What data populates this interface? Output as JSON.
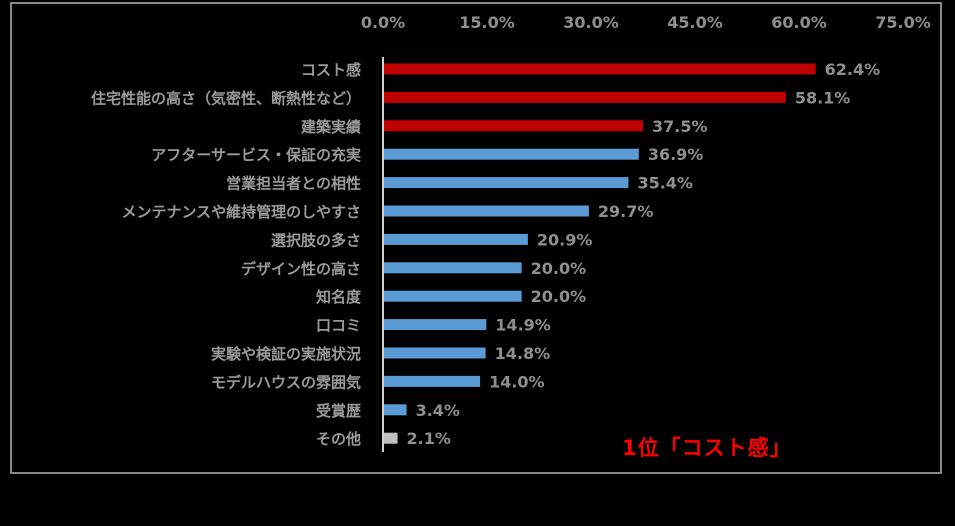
{
  "chart_data": {
    "type": "bar",
    "orientation": "horizontal",
    "categories": [
      "コスト感",
      "住宅性能の高さ（気密性、断熱性など）",
      "建築実績",
      "アフターサービス・保証の充実",
      "営業担当者との相性",
      "メンテナンスや維持管理のしやすさ",
      "選択肢の多さ",
      "デザイン性の高さ",
      "知名度",
      "口コミ",
      "実験や検証の実施状況",
      "モデルハウスの雰囲気",
      "受賞歴",
      "その他"
    ],
    "values": [
      62.4,
      58.1,
      37.5,
      36.9,
      35.4,
      29.7,
      20.9,
      20.0,
      20.0,
      14.9,
      14.8,
      14.0,
      3.4,
      2.1
    ],
    "value_labels": [
      "62.4%",
      "58.1%",
      "37.5%",
      "36.9%",
      "35.4%",
      "29.7%",
      "20.9%",
      "20.0%",
      "20.0%",
      "14.9%",
      "14.8%",
      "14.0%",
      "3.4%",
      "2.1%"
    ],
    "bar_colors": [
      "#c00000",
      "#c00000",
      "#c00000",
      "#5b9bd5",
      "#5b9bd5",
      "#5b9bd5",
      "#5b9bd5",
      "#5b9bd5",
      "#5b9bd5",
      "#5b9bd5",
      "#5b9bd5",
      "#5b9bd5",
      "#5b9bd5",
      "#bfbfbf"
    ],
    "x_ticks": [
      0,
      15,
      30,
      45,
      60,
      75
    ],
    "x_tick_labels": [
      "0.0%",
      "15.0%",
      "30.0%",
      "45.0%",
      "60.0%",
      "75.0%"
    ],
    "xlim": [
      0,
      75
    ],
    "axis_position": "top",
    "grid": false,
    "legend": "none"
  },
  "annotation": {
    "text": "1位「コスト感」",
    "color": "#ff0000"
  }
}
